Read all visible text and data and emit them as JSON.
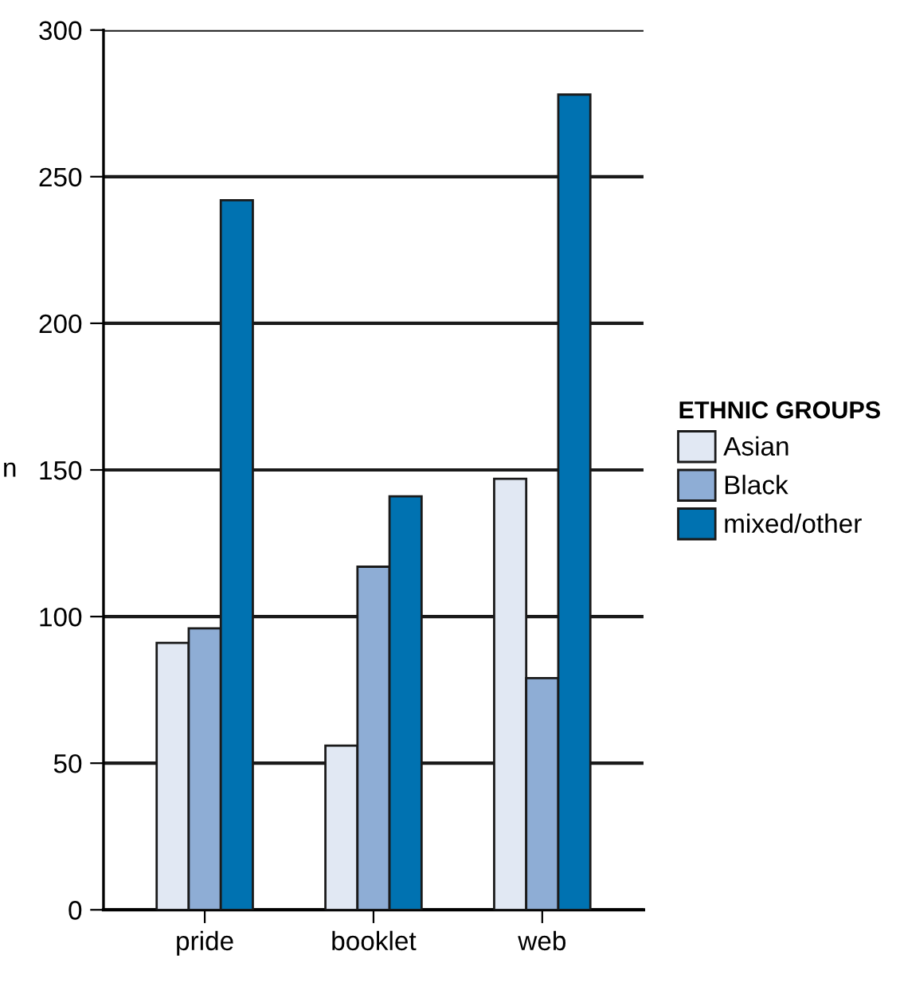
{
  "chart_data": {
    "type": "bar",
    "ylabel": "n",
    "legend_title": "ETHNIC GROUPS",
    "categories": [
      "pride",
      "booklet",
      "web"
    ],
    "series": [
      {
        "name": "Asian",
        "color": "#e1e8f3",
        "values": [
          91,
          56,
          147
        ]
      },
      {
        "name": "Black",
        "color": "#8eadd5",
        "values": [
          96,
          117,
          79
        ]
      },
      {
        "name": "mixed/other",
        "color": "#0072b1",
        "values": [
          242,
          141,
          278
        ]
      }
    ],
    "ylim": [
      0,
      300
    ],
    "yticks": [
      0,
      50,
      100,
      150,
      200,
      250,
      300
    ],
    "grid": "y",
    "legend": "right"
  }
}
